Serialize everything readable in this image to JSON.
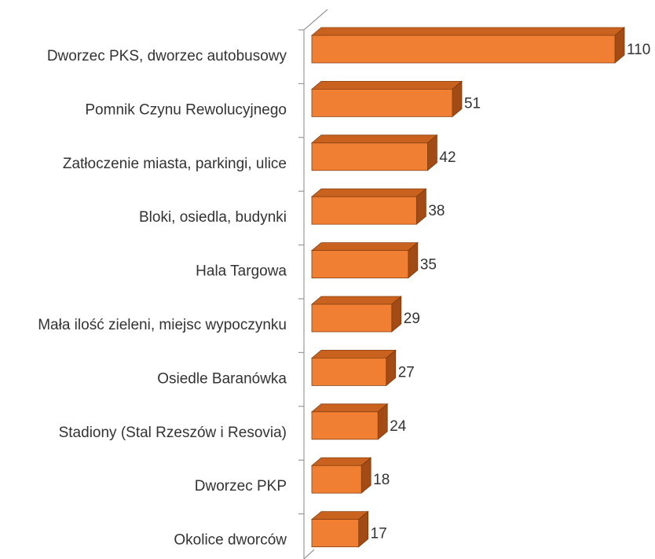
{
  "chart_data": {
    "type": "bar3d",
    "orientation": "horizontal",
    "categories": [
      "Dworzec PKS, dworzec autobusowy",
      "Pomnik Czynu Rewolucyjnego",
      "Zatłoczenie miasta, parkingi, ulice",
      "Bloki, osiedla, budynki",
      "Hala Targowa",
      "Mała ilość zieleni, miejsc wypoczynku",
      "Osiedle Baranówka",
      "Stadiony (Stal Rzeszów i Resovia)",
      "Dworzec PKP",
      "Okolice dworców"
    ],
    "values": [
      110,
      51,
      42,
      38,
      35,
      29,
      27,
      24,
      18,
      17
    ],
    "color": "#f07f33"
  }
}
